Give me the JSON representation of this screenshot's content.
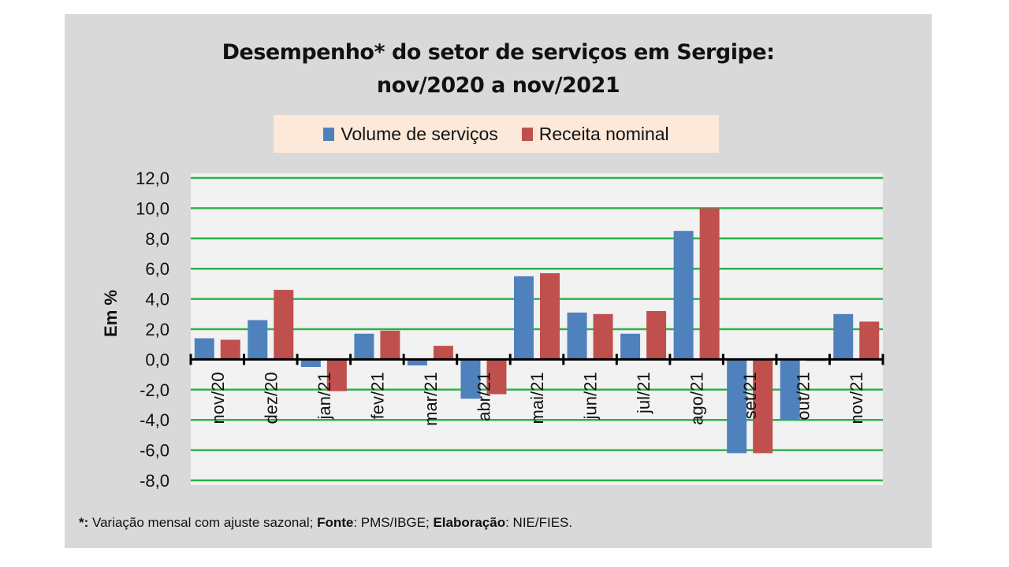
{
  "chart_data": {
    "type": "bar",
    "title": "Desempenho* do setor de serviços em Sergipe:",
    "subtitle": "nov/2020 a nov/2021",
    "xlabel": "",
    "ylabel": "Em %",
    "ylim": [
      -8,
      12
    ],
    "yticks": [
      12,
      10,
      8,
      6,
      4,
      2,
      0,
      -2,
      -4,
      -6,
      -8
    ],
    "ytick_labels": [
      "12,0",
      "10,0",
      "8,0",
      "6,0",
      "4,0",
      "2,0",
      "0,0",
      "-2,0",
      "-4,0",
      "-6,0",
      "-8,0"
    ],
    "grid": true,
    "legend_position": "top-center",
    "categories": [
      "nov/20",
      "dez/20",
      "jan/21",
      "fev/21",
      "mar/21",
      "abr/21",
      "mai/21",
      "jun/21",
      "jul/21",
      "ago/21",
      "set/21",
      "out/21",
      "nov/21"
    ],
    "series": [
      {
        "name": "Volume de serviços",
        "color": "#4f81bd",
        "values": [
          1.4,
          2.6,
          -0.5,
          1.7,
          -0.4,
          -2.6,
          5.5,
          3.1,
          1.7,
          8.5,
          -6.2,
          -4.0,
          3.0
        ]
      },
      {
        "name": "Receita nominal",
        "color": "#c0504d",
        "values": [
          1.3,
          4.6,
          -2.1,
          1.9,
          0.9,
          -2.3,
          5.7,
          3.0,
          3.2,
          10.0,
          -6.2,
          -0.1,
          2.5
        ]
      }
    ]
  },
  "colors": {
    "gridline": "#2db24a",
    "plot_background": "#f2f2f2",
    "chart_background": "#d9d9d9",
    "legend_background": "#fde9d9"
  },
  "footnote": {
    "marker": "*:",
    "text1": " Variação mensal com ajuste sazonal; ",
    "fonte_label": "Fonte",
    "text2": ": PMS/IBGE; ",
    "elab_label": "Elaboração",
    "text3": ": NIE/FIES."
  }
}
